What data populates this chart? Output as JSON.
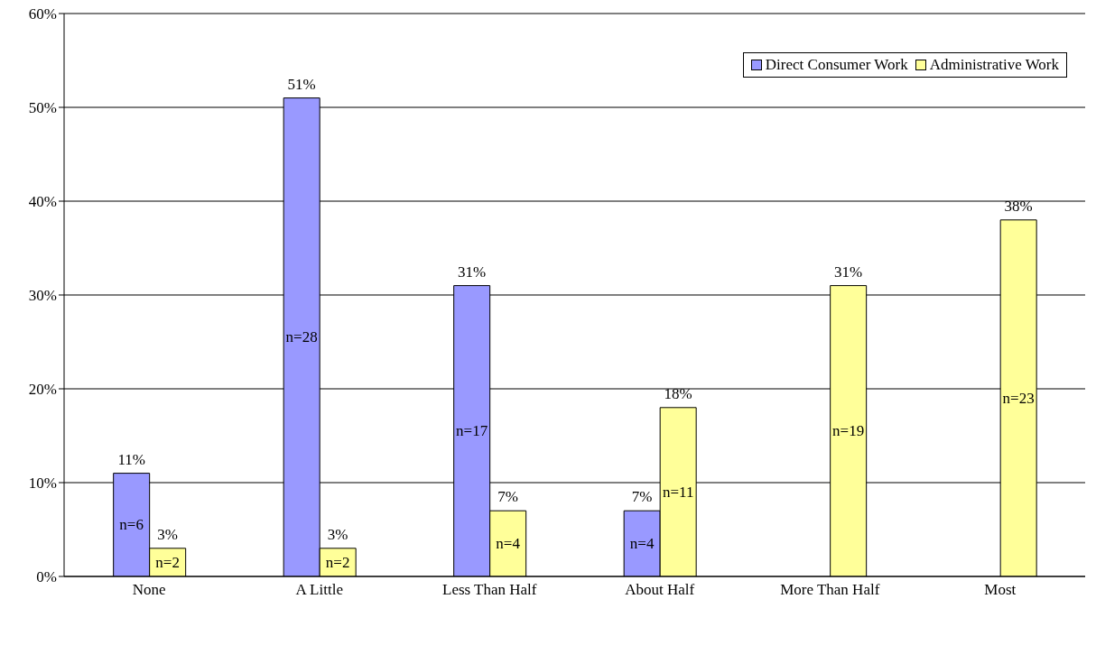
{
  "chart_data": {
    "type": "bar",
    "categories": [
      "None",
      "A Little",
      "Less Than Half",
      "About Half",
      "More Than Half",
      "Most"
    ],
    "series": [
      {
        "name": "Direct Consumer Work",
        "color": "#9999ff",
        "values": [
          11,
          51,
          31,
          7,
          null,
          null
        ],
        "value_labels": [
          "11%",
          "51%",
          "31%",
          "7%",
          null,
          null
        ]
      },
      {
        "name": "Administrative Work",
        "color": "#ffff99",
        "values": [
          3,
          3,
          7,
          18,
          31,
          38
        ],
        "value_labels": [
          "3%",
          "3%",
          "7%",
          "18%",
          "31%",
          "38%"
        ]
      }
    ],
    "ylim": [
      0,
      60
    ],
    "yticks": [
      {
        "value": 0,
        "label": "0%"
      },
      {
        "value": 10,
        "label": "10%"
      },
      {
        "value": 20,
        "label": "20%"
      },
      {
        "value": 30,
        "label": "30%"
      },
      {
        "value": 40,
        "label": "40%"
      },
      {
        "value": 50,
        "label": "50%"
      },
      {
        "value": 60,
        "label": "60%"
      }
    ],
    "grid": "y",
    "legend": "top right",
    "annotations": [
      {
        "text": "n=6",
        "x": "None",
        "y": 5.5
      },
      {
        "text": "n=2",
        "x": "None",
        "y": 1.5
      },
      {
        "text": "n=28",
        "x": "A Little",
        "y": 25.5
      },
      {
        "text": "n=2",
        "x": "A Little",
        "y": 1.5
      },
      {
        "text": "n=17",
        "x": "Less Than Half",
        "y": 15.5
      },
      {
        "text": "n=4",
        "x": "Less Than Half",
        "y": 3.5
      },
      {
        "text": "n=4",
        "x": "About Half",
        "y": 3.5
      },
      {
        "text": "n=11",
        "x": "About Half",
        "y": 9
      },
      {
        "text": "n=19",
        "x": "More Than Half",
        "y": 15.5
      },
      {
        "text": "n=23",
        "x": "Most",
        "y": 19
      }
    ]
  }
}
